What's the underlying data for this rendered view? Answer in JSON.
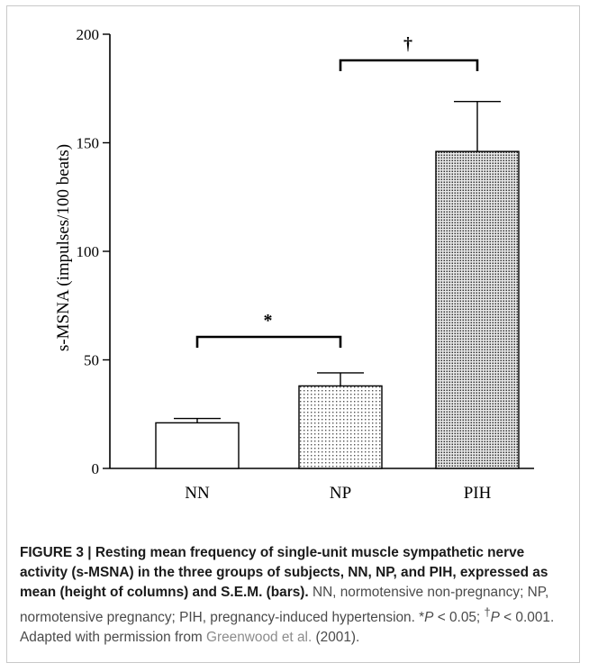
{
  "chart_data": {
    "type": "bar",
    "categories": [
      "NN",
      "NP",
      "PIH"
    ],
    "values": [
      21,
      38,
      146
    ],
    "errors": [
      2,
      6,
      23
    ],
    "ylabel": "s-MSNA (impulses/100 beats)",
    "ylim": [
      0,
      200
    ],
    "yticks": [
      "0",
      "50",
      "100",
      "150",
      "200"
    ],
    "bar_fill": [
      "plain",
      "light-dots",
      "dense-dots"
    ],
    "annotations": [
      {
        "between": [
          "NN",
          "NP"
        ],
        "symbol": "*"
      },
      {
        "between": [
          "NP",
          "PIH"
        ],
        "symbol": "†"
      }
    ],
    "grid": false,
    "legend": "none"
  },
  "caption": {
    "label": "FIGURE 3 | ",
    "title": "Resting mean frequency of single-unit muscle sympathetic nerve activity (s-MSNA) in the three groups of subjects, NN, NP, and PIH, expressed as mean (height of columns) and S.E.M. (bars).",
    "body_1": " NN, normotensive non-pregnancy; NP, normotensive pregnancy; PIH, pregnancy-induced hypertension. ",
    "star": "*",
    "p": "P",
    "p1_value": " < 0.05; ",
    "dagger": "†",
    "p2_value": " < 0.001. Adapted with permission from ",
    "reference": "Greenwood et al.",
    "reference_year": " (2001)."
  }
}
